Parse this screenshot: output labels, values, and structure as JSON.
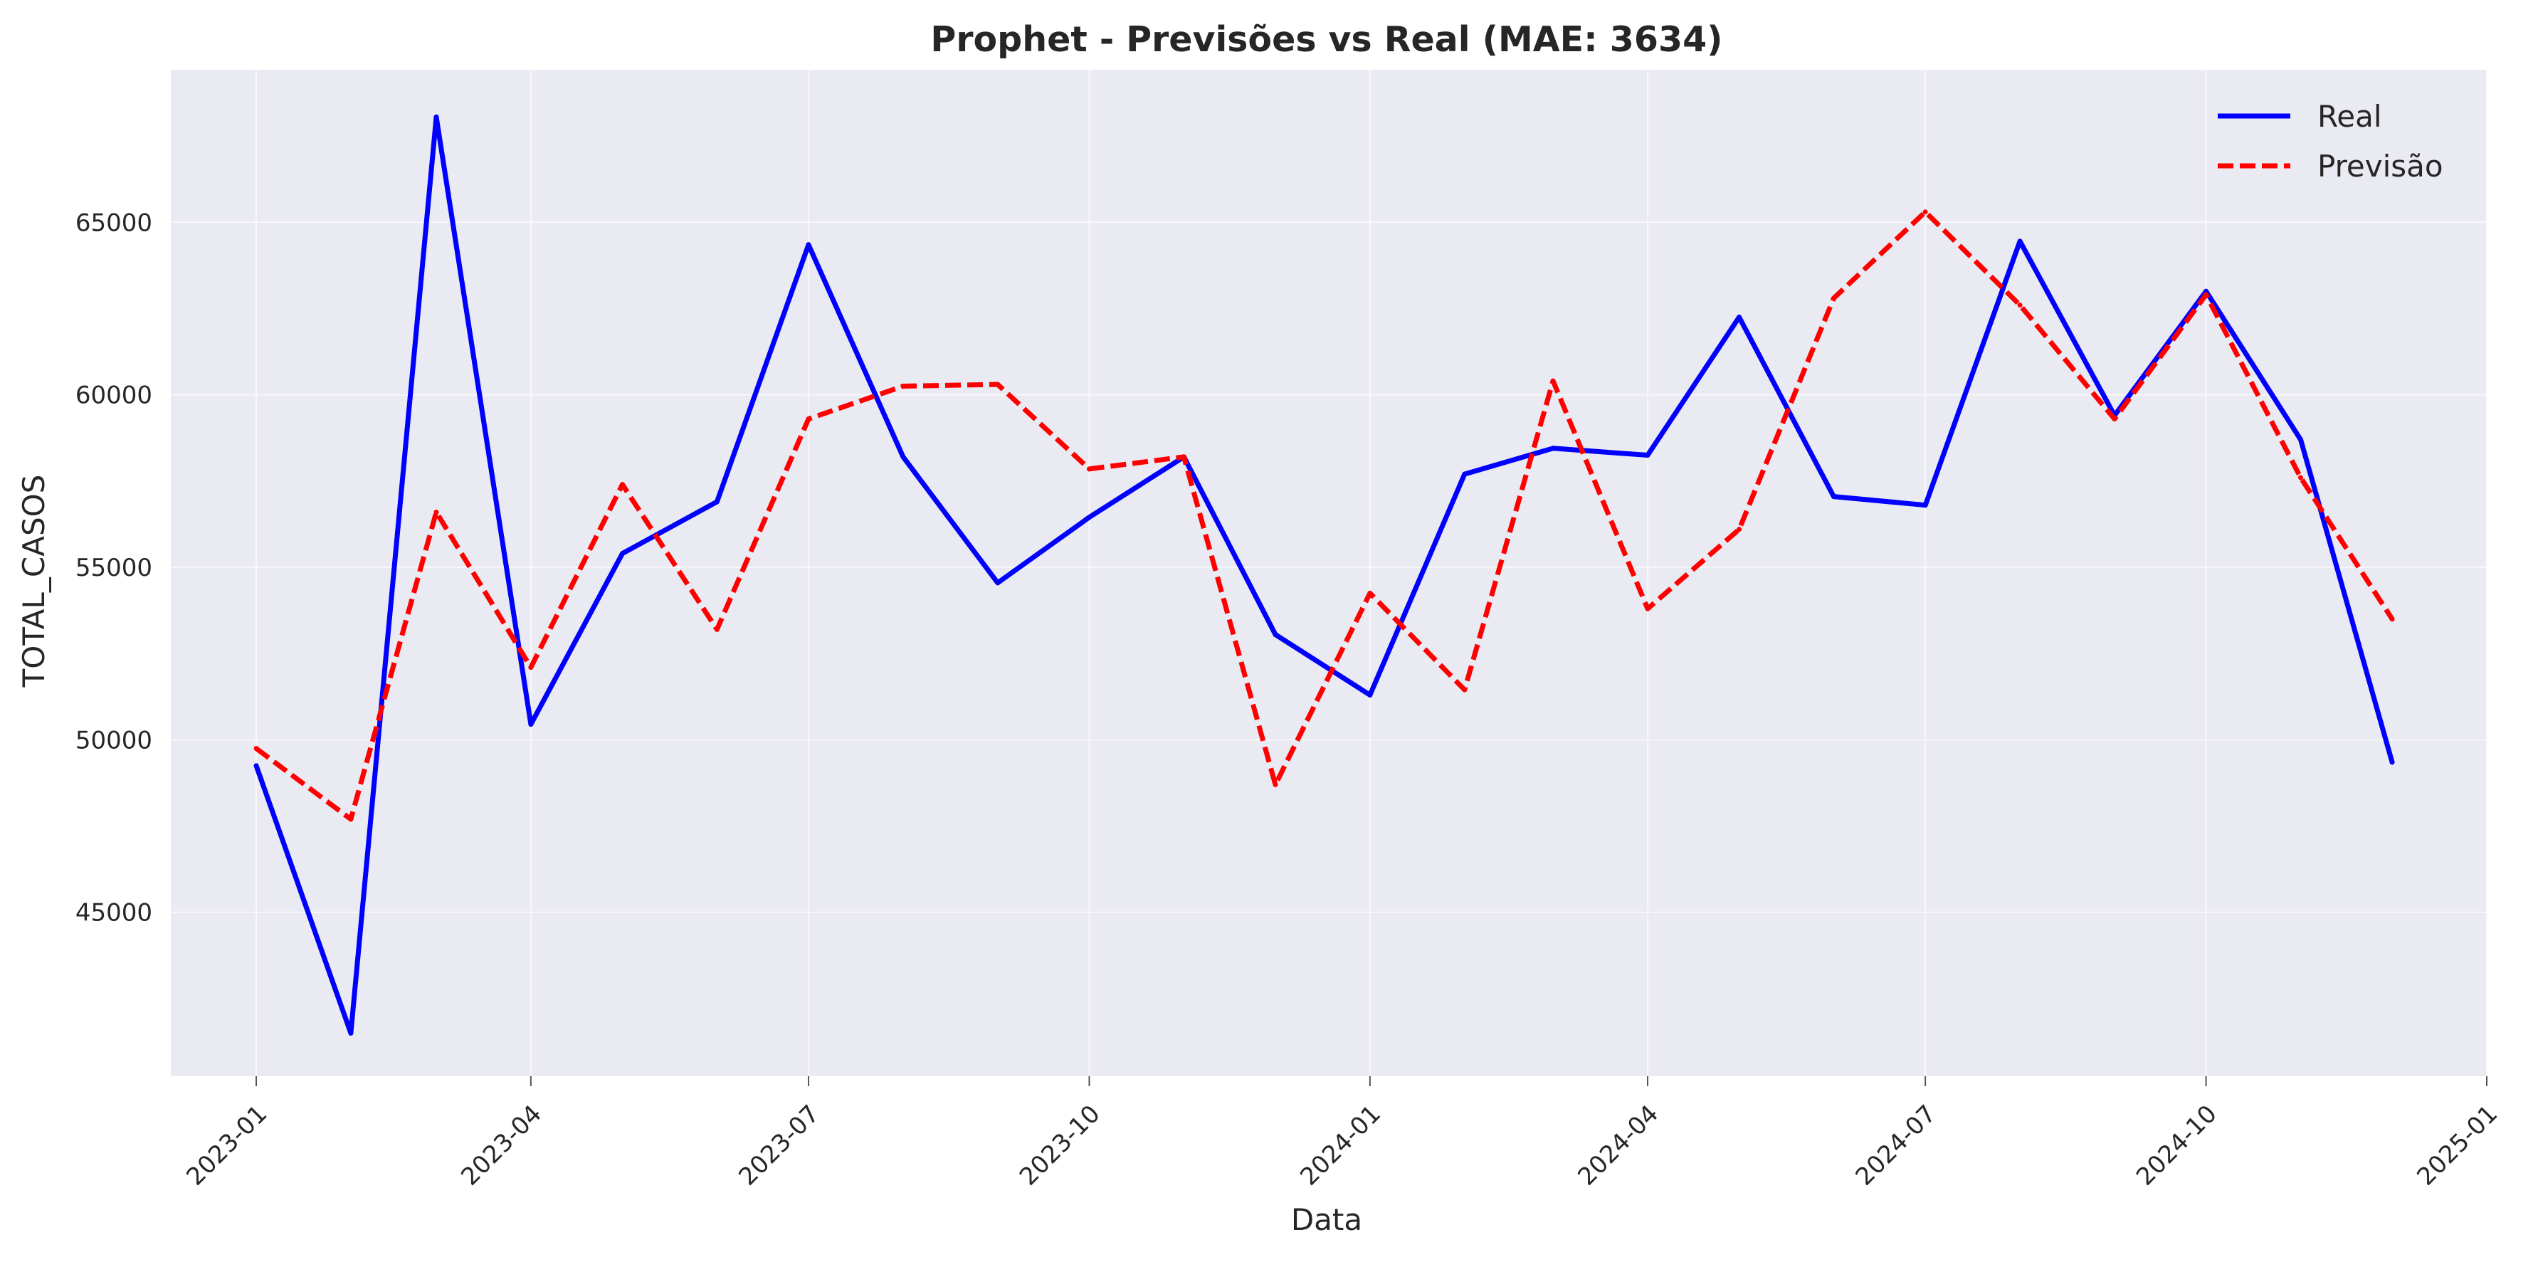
{
  "chart_data": {
    "type": "line",
    "title": "Prophet - Previsões vs Real (MAE: 3634)",
    "xlabel": "Data",
    "ylabel": "TOTAL_CASOS",
    "x": [
      "2023-01-01",
      "2023-02-01",
      "2023-03-01",
      "2023-04-01",
      "2023-05-01",
      "2023-06-01",
      "2023-07-01",
      "2023-08-01",
      "2023-09-01",
      "2023-10-01",
      "2023-11-01",
      "2023-12-01",
      "2024-01-01",
      "2024-02-01",
      "2024-03-01",
      "2024-04-01",
      "2024-05-01",
      "2024-06-01",
      "2024-07-01",
      "2024-08-01",
      "2024-09-01",
      "2024-10-01",
      "2024-11-01",
      "2024-12-01"
    ],
    "series": [
      {
        "name": "Real",
        "color": "#0000ff",
        "style": "solid",
        "values": [
          49250,
          41500,
          68050,
          50450,
          55400,
          56900,
          64350,
          58200,
          54550,
          56450,
          58200,
          53050,
          51300,
          57700,
          58450,
          58250,
          62250,
          57050,
          56800,
          64450,
          59400,
          63000,
          58700,
          49350
        ]
      },
      {
        "name": "Previsão",
        "color": "#ff0000",
        "style": "dashed",
        "values": [
          49750,
          47700,
          56600,
          52100,
          57400,
          53200,
          59300,
          60250,
          60300,
          57850,
          58200,
          48700,
          54250,
          51450,
          60400,
          53800,
          56100,
          62800,
          65300,
          62600,
          59300,
          62900,
          57600,
          53500
        ]
      }
    ],
    "xticks": [
      "2023-01",
      "2023-04",
      "2023-07",
      "2023-10",
      "2024-01",
      "2024-04",
      "2024-07",
      "2024-10",
      "2025-01"
    ],
    "xtick_dates": [
      "2023-01-01",
      "2023-04-01",
      "2023-07-01",
      "2023-10-01",
      "2024-01-01",
      "2024-04-01",
      "2024-07-01",
      "2024-10-01",
      "2025-01-01"
    ],
    "yticks": [
      "45000",
      "50000",
      "55000",
      "60000",
      "65000"
    ],
    "xlim": [
      "2022-12-04",
      "2025-01-01"
    ],
    "ylim": [
      40250,
      69420
    ],
    "grid": true,
    "legend": "top-right",
    "colors": {
      "plot_background": "#eaeaf2",
      "grid": "#ffffff"
    }
  }
}
